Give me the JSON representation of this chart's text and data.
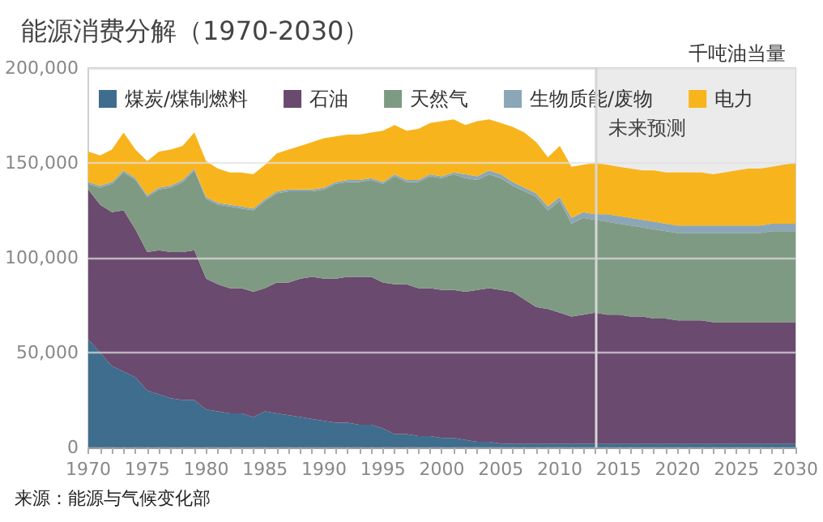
{
  "chart_data": {
    "type": "area",
    "stacked": true,
    "title": "能源消费分解（1970-2030）",
    "ylabel": "千吨油当量",
    "annotations": [
      "来源：能源与气候变化部"
    ],
    "x": [
      1970,
      1971,
      1972,
      1973,
      1974,
      1975,
      1976,
      1977,
      1978,
      1979,
      1980,
      1981,
      1982,
      1983,
      1984,
      1985,
      1986,
      1987,
      1988,
      1989,
      1990,
      1991,
      1992,
      1993,
      1994,
      1995,
      1996,
      1997,
      1998,
      1999,
      2000,
      2001,
      2002,
      2003,
      2004,
      2005,
      2006,
      2007,
      2008,
      2009,
      2010,
      2011,
      2012,
      2013,
      2014,
      2015,
      2016,
      2017,
      2018,
      2019,
      2020,
      2021,
      2022,
      2023,
      2024,
      2025,
      2026,
      2027,
      2028,
      2029,
      2030
    ],
    "series": [
      {
        "name": "煤炭/煤制燃料",
        "color": "#3f6d8d",
        "values": [
          57000,
          50000,
          43000,
          40000,
          37000,
          30000,
          28000,
          26000,
          25000,
          25000,
          20000,
          19000,
          18000,
          18000,
          16000,
          19000,
          18000,
          17000,
          16000,
          15000,
          14000,
          13000,
          13000,
          12000,
          12000,
          10000,
          7000,
          7000,
          6000,
          6000,
          5000,
          5000,
          4000,
          3000,
          3000,
          2000,
          2000,
          2000,
          2000,
          2000,
          2000,
          2000,
          2000,
          2000,
          2000,
          2000,
          2000,
          2000,
          2000,
          2000,
          2000,
          2000,
          2000,
          2000,
          2000,
          2000,
          2000,
          2000,
          2000,
          2000,
          2000
        ]
      },
      {
        "name": "石油",
        "color": "#6a4a6e",
        "values": [
          79000,
          78000,
          81000,
          85000,
          78000,
          73000,
          76000,
          77000,
          78000,
          79000,
          69000,
          67000,
          66000,
          66000,
          66000,
          65000,
          69000,
          70000,
          73000,
          75000,
          75000,
          76000,
          77000,
          78000,
          78000,
          77000,
          79000,
          79000,
          78000,
          78000,
          78000,
          78000,
          78000,
          80000,
          81000,
          81000,
          80000,
          76000,
          72000,
          71000,
          69000,
          67000,
          68000,
          69000,
          68000,
          68000,
          67000,
          67000,
          66000,
          66000,
          65000,
          65000,
          65000,
          64000,
          64000,
          64000,
          64000,
          64000,
          64000,
          64000,
          64000
        ]
      },
      {
        "name": "天然气",
        "color": "#7f9a82",
        "values": [
          3000,
          9000,
          15000,
          20000,
          26000,
          29000,
          32000,
          34000,
          37000,
          42000,
          42000,
          42000,
          43000,
          42000,
          43000,
          46000,
          47000,
          48000,
          46000,
          45000,
          47000,
          50000,
          50000,
          50000,
          51000,
          52000,
          57000,
          54000,
          56000,
          59000,
          59000,
          61000,
          60000,
          58000,
          60000,
          59000,
          56000,
          57000,
          58000,
          52000,
          59000,
          49000,
          51000,
          49000,
          49000,
          48000,
          48000,
          47000,
          47000,
          46000,
          46000,
          46000,
          46000,
          47000,
          47000,
          47000,
          47000,
          47000,
          48000,
          48000,
          48000
        ]
      },
      {
        "name": "生物质能/废物",
        "color": "#8ba6b6",
        "values": [
          1000,
          1000,
          1000,
          1000,
          1000,
          1000,
          1000,
          1000,
          1000,
          1000,
          1000,
          1000,
          1000,
          1000,
          1000,
          1000,
          1000,
          1000,
          1000,
          1000,
          1000,
          1000,
          1000,
          1000,
          1000,
          1000,
          1000,
          1000,
          1000,
          1000,
          1000,
          1000,
          2000,
          2000,
          2000,
          2000,
          2000,
          2000,
          2000,
          2000,
          2000,
          3000,
          3000,
          3000,
          4000,
          4000,
          4000,
          4000,
          4000,
          4000,
          4000,
          4000,
          4000,
          4000,
          4000,
          4000,
          4000,
          4000,
          4000,
          4000,
          4000
        ]
      },
      {
        "name": "电力",
        "color": "#f8b41c",
        "values": [
          16000,
          16000,
          17000,
          20000,
          15000,
          18000,
          19000,
          19000,
          18000,
          19000,
          19000,
          18000,
          17000,
          18000,
          18000,
          18000,
          20000,
          21000,
          23000,
          25000,
          26000,
          24000,
          24000,
          24000,
          24000,
          27000,
          26000,
          26000,
          27000,
          27000,
          29000,
          28000,
          26000,
          29000,
          27000,
          27000,
          29000,
          29000,
          27000,
          26000,
          27000,
          27000,
          25000,
          27000,
          26000,
          26000,
          26000,
          26000,
          27000,
          27000,
          28000,
          28000,
          28000,
          27000,
          28000,
          29000,
          30000,
          30000,
          30000,
          31000,
          32000
        ]
      }
    ],
    "xlim": [
      1970,
      2030
    ],
    "xticks": [
      1970,
      {
        "value": 1971,
        "label": null
      },
      {
        "value": 1972,
        "label": null
      },
      {
        "value": 1973,
        "label": null
      },
      {
        "value": 1974,
        "label": null
      },
      1975,
      {
        "value": 1976,
        "label": null
      },
      {
        "value": 1977,
        "label": null
      },
      {
        "value": 1978,
        "label": null
      },
      {
        "value": 1979,
        "label": null
      },
      1980,
      {
        "value": 1981,
        "label": null
      },
      {
        "value": 1982,
        "label": null
      },
      {
        "value": 1983,
        "label": null
      },
      {
        "value": 1984,
        "label": null
      },
      1985,
      {
        "value": 1986,
        "label": null
      },
      {
        "value": 1987,
        "label": null
      },
      {
        "value": 1988,
        "label": null
      },
      {
        "value": 1989,
        "label": null
      },
      1990,
      {
        "value": 1991,
        "label": null
      },
      {
        "value": 1992,
        "label": null
      },
      {
        "value": 1993,
        "label": null
      },
      {
        "value": 1994,
        "label": null
      },
      1995,
      {
        "value": 1996,
        "label": null
      },
      {
        "value": 1997,
        "label": null
      },
      {
        "value": 1998,
        "label": null
      },
      {
        "value": 1999,
        "label": null
      },
      2000,
      {
        "value": 2001,
        "label": null
      },
      {
        "value": 2002,
        "label": null
      },
      {
        "value": 2003,
        "label": null
      },
      {
        "value": 2004,
        "label": null
      },
      2005,
      {
        "value": 2006,
        "label": null
      },
      {
        "value": 2007,
        "label": null
      },
      {
        "value": 2008,
        "label": null
      },
      {
        "value": 2009,
        "label": null
      },
      2010,
      {
        "value": 2011,
        "label": null
      },
      {
        "value": 2012,
        "label": null
      },
      {
        "value": 2013,
        "label": null
      },
      {
        "value": 2014,
        "label": null
      },
      2015,
      {
        "value": 2016,
        "label": null
      },
      {
        "value": 2017,
        "label": null
      },
      {
        "value": 2018,
        "label": null
      },
      {
        "value": 2019,
        "label": null
      },
      2020,
      {
        "value": 2021,
        "label": null
      },
      {
        "value": 2022,
        "label": null
      },
      {
        "value": 2023,
        "label": null
      },
      {
        "value": 2024,
        "label": null
      },
      2025,
      {
        "value": 2026,
        "label": null
      },
      {
        "value": 2027,
        "label": null
      },
      {
        "value": 2028,
        "label": null
      },
      {
        "value": 2029,
        "label": null
      },
      2030
    ],
    "ylim": [
      0,
      200000
    ],
    "yticks": [
      0,
      {
        "value": 50000,
        "label": "50,000"
      },
      {
        "value": 100000,
        "label": "100,000"
      },
      {
        "value": 150000,
        "label": "150,000"
      },
      {
        "value": 200000,
        "label": "200,000"
      }
    ],
    "bands": [
      {
        "axis": "x",
        "from": 2013,
        "to": 2030,
        "label": "未来预测",
        "color": "#ebebeb"
      }
    ],
    "ref_lines": [
      {
        "axis": "x",
        "value": 2013,
        "color": "#d6d6d6"
      }
    ],
    "grid": "y",
    "legend": "top",
    "marker": "none"
  }
}
